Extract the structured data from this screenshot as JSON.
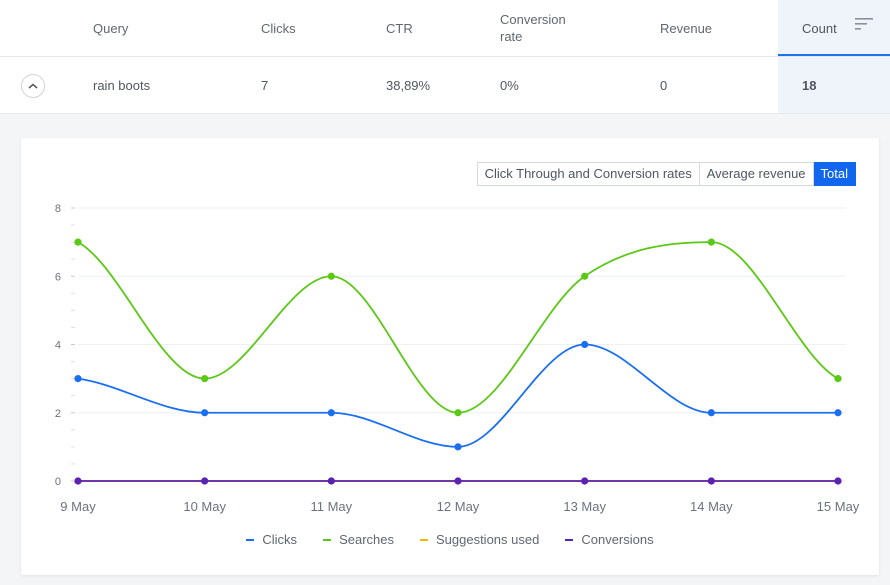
{
  "table": {
    "headers": {
      "query": "Query",
      "clicks": "Clicks",
      "ctr": "CTR",
      "conversion_line1": "Conversion",
      "conversion_line2": "rate",
      "revenue": "Revenue",
      "count": "Count"
    },
    "row": {
      "query": "rain boots",
      "clicks": "7",
      "ctr": "38,89%",
      "conversion": "0%",
      "revenue": "0",
      "count": "18"
    }
  },
  "tabs": [
    {
      "label": "Click Through and Conversion rates",
      "active": false
    },
    {
      "label": "Average revenue",
      "active": false
    },
    {
      "label": "Total",
      "active": true
    }
  ],
  "colors": {
    "clicks": "#1a6ff0",
    "searches": "#5ac814",
    "suggestions": "#f2b705",
    "conversions": "#5b21b6",
    "accent": "#1166ee"
  },
  "chart_data": {
    "type": "line",
    "categories": [
      "9 May",
      "10 May",
      "11 May",
      "12 May",
      "13 May",
      "14 May",
      "15 May"
    ],
    "ylim": [
      0,
      8
    ],
    "yticks": [
      "0",
      "2",
      "4",
      "6",
      "8"
    ],
    "series": [
      {
        "name": "Clicks",
        "color": "#1a6ff0",
        "values": [
          3,
          2,
          2,
          1,
          4,
          2,
          2
        ]
      },
      {
        "name": "Searches",
        "color": "#5ac814",
        "values": [
          7,
          3,
          6,
          2,
          6,
          7,
          3
        ]
      },
      {
        "name": "Suggestions used",
        "color": "#f2b705",
        "values": [
          0,
          0,
          0,
          0,
          0,
          0,
          0
        ]
      },
      {
        "name": "Conversions",
        "color": "#5b21b6",
        "values": [
          0,
          0,
          0,
          0,
          0,
          0,
          0
        ]
      }
    ]
  }
}
